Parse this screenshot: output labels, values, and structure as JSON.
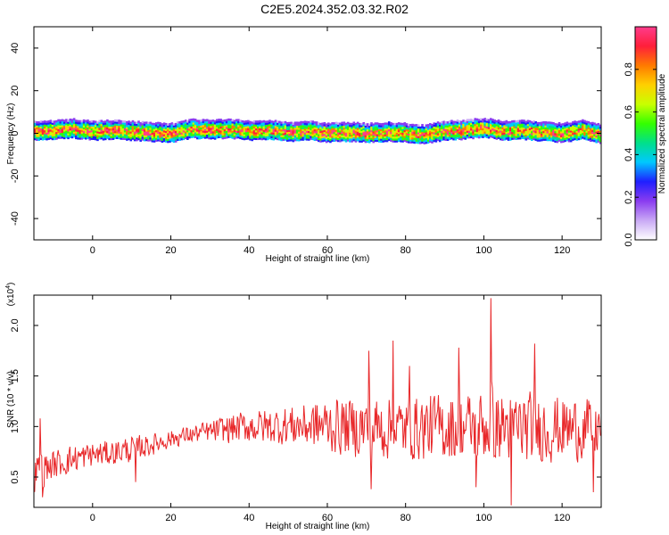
{
  "title": "C2E5.2024.352.03.32.R02",
  "colors": {
    "snr_line": "#e8282a",
    "axis": "#000000",
    "background": "#ffffff"
  },
  "colormap": [
    "#ffffff",
    "#c9a9f5",
    "#8a3cf0",
    "#1f1fff",
    "#00c8ff",
    "#00e08a",
    "#33ff00",
    "#c8ff00",
    "#ffd000",
    "#ff7a00",
    "#ff1f3a",
    "#ff3c8c"
  ],
  "chart_data": [
    {
      "type": "heatmap",
      "title": "",
      "xlabel": "Height of straight line (km)",
      "ylabel": "Frequency (Hz)",
      "xlim": [
        -15,
        130
      ],
      "ylim": [
        -50,
        50
      ],
      "xticks": [
        0,
        20,
        40,
        60,
        80,
        100,
        120
      ],
      "yticks": [
        -40,
        -20,
        0,
        20,
        40
      ],
      "grid": false,
      "ridge": {
        "x": [
          -15,
          -10,
          -5,
          0,
          5,
          10,
          15,
          20,
          25,
          30,
          35,
          40,
          45,
          50,
          55,
          60,
          65,
          70,
          75,
          80,
          85,
          90,
          95,
          100,
          105,
          110,
          115,
          120,
          125,
          130
        ],
        "y": [
          0.5,
          1,
          1.5,
          0.5,
          1,
          0.5,
          0,
          -0.5,
          1.5,
          1,
          1.5,
          0.5,
          1,
          0,
          0.5,
          -0.5,
          0,
          -0.5,
          0,
          -0.5,
          -1,
          0.5,
          1,
          2,
          0.5,
          1,
          0,
          -0.5,
          1,
          -1
        ],
        "half_width_hz": 4
      },
      "colorbar": {
        "label": "Normalized spectral amplitude",
        "range": [
          0,
          1
        ],
        "ticks": [
          0.0,
          0.2,
          0.4,
          0.6,
          0.8
        ]
      }
    },
    {
      "type": "line",
      "title": "",
      "xlabel": "Height of straight line (km)",
      "ylabel": "SNR (10 * v/v)",
      "y_multiplier_label": "(x10",
      "y_multiplier_exp": "4",
      "y_multiplier_close": ")",
      "xlim": [
        -15,
        130
      ],
      "ylim": [
        0.2,
        2.3
      ],
      "xticks": [
        0,
        20,
        40,
        60,
        80,
        100,
        120
      ],
      "yticks": [
        0.5,
        1.0,
        1.5,
        2.0
      ],
      "grid": false,
      "envelope": {
        "x": [
          -15,
          -10,
          -5,
          0,
          5,
          10,
          15,
          20,
          25,
          30,
          35,
          40,
          45,
          50,
          55,
          60,
          65,
          70,
          75,
          80,
          85,
          90,
          95,
          100,
          105,
          110,
          115,
          120,
          125,
          130
        ],
        "mean": [
          0.55,
          0.62,
          0.68,
          0.72,
          0.74,
          0.78,
          0.82,
          0.88,
          0.92,
          0.95,
          0.98,
          1.0,
          1.0,
          1.01,
          1.01,
          1.01,
          1.0,
          0.99,
          0.98,
          0.98,
          0.99,
          0.99,
          1.0,
          1.0,
          1.0,
          0.99,
          0.98,
          0.98,
          0.98,
          0.98
        ],
        "amp": [
          0.2,
          0.16,
          0.16,
          0.14,
          0.14,
          0.15,
          0.12,
          0.1,
          0.1,
          0.12,
          0.16,
          0.18,
          0.2,
          0.22,
          0.25,
          0.3,
          0.32,
          0.35,
          0.35,
          0.35,
          0.36,
          0.38,
          0.38,
          0.4,
          0.4,
          0.4,
          0.38,
          0.36,
          0.34,
          0.32
        ]
      },
      "peaks": [
        {
          "x": 101.7,
          "y": 2.27
        },
        {
          "x": 70.6,
          "y": 1.75
        },
        {
          "x": 76.8,
          "y": 1.85
        },
        {
          "x": 93.6,
          "y": 1.78
        },
        {
          "x": 113.0,
          "y": 1.82
        },
        {
          "x": 81.0,
          "y": 1.6
        },
        {
          "x": 107.0,
          "y": 0.22
        },
        {
          "x": 71.2,
          "y": 0.38
        },
        {
          "x": 98.0,
          "y": 0.4
        },
        {
          "x": -13.4,
          "y": 1.08
        },
        {
          "x": -12.8,
          "y": 0.3
        },
        {
          "x": 11.0,
          "y": 0.45
        },
        {
          "x": 128.0,
          "y": 0.35
        }
      ]
    }
  ]
}
